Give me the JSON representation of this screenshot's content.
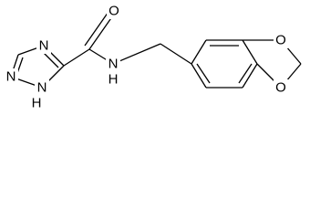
{
  "atoms": [
    {
      "label": "N"
    },
    {
      "label": "N"
    },
    {
      "label": "N",
      "hydrogen": "H"
    },
    {
      "label": "O"
    },
    {
      "label": "N",
      "hydrogen": "H"
    },
    {
      "label": "O"
    },
    {
      "label": "O"
    }
  ]
}
